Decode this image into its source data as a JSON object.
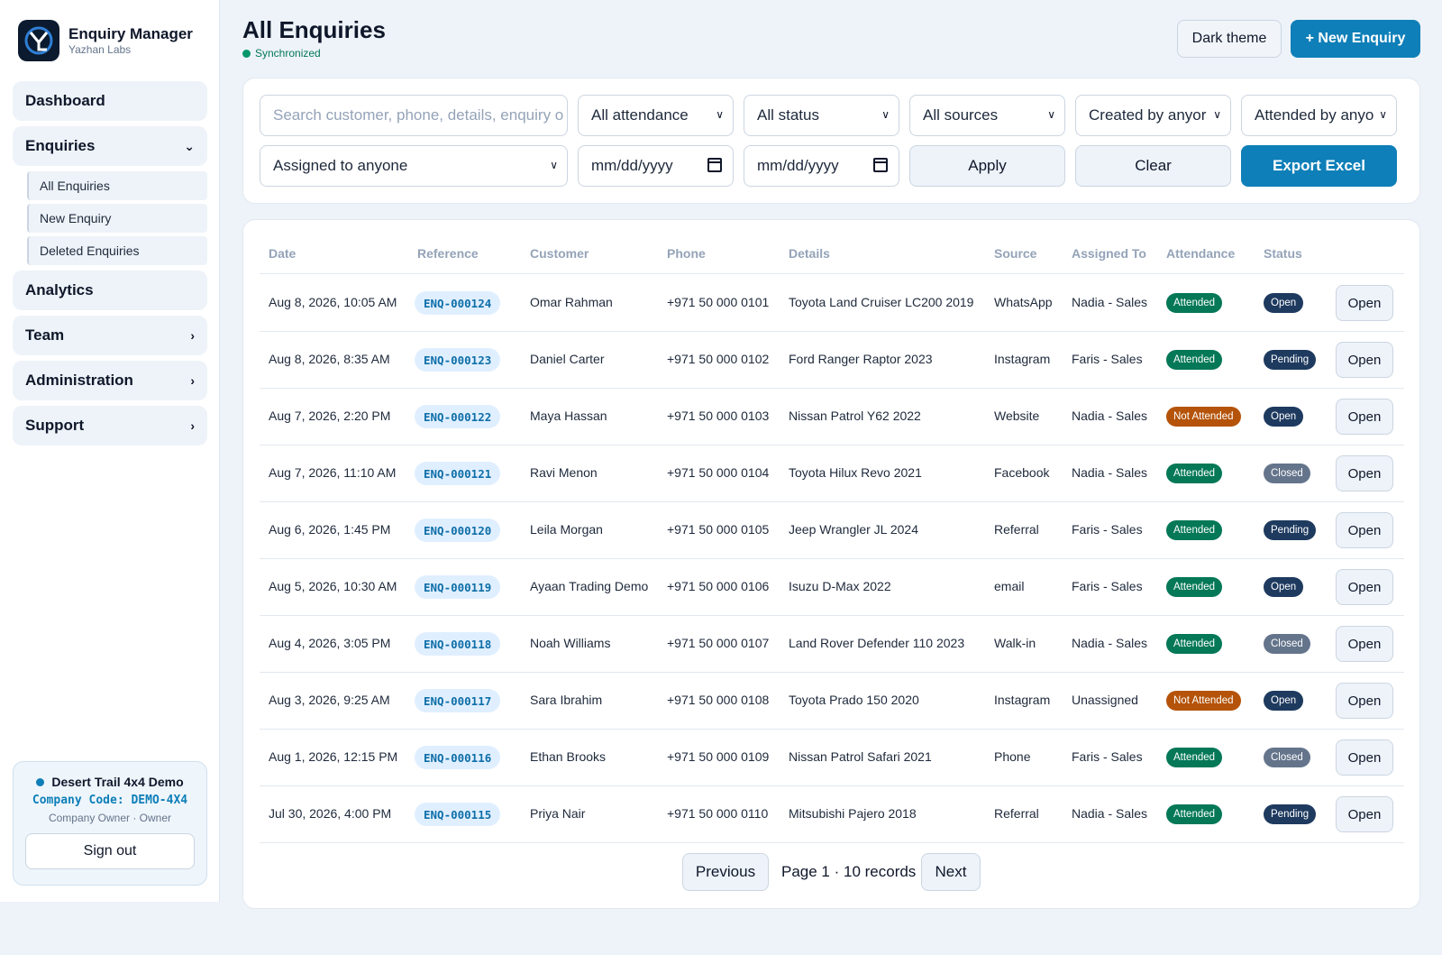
{
  "brand": {
    "title": "Enquiry Manager",
    "subtitle": "Yazhan Labs"
  },
  "sidebar": {
    "items": [
      {
        "label": "Dashboard"
      },
      {
        "label": "Enquiries"
      },
      {
        "label": "Analytics"
      },
      {
        "label": "Team"
      },
      {
        "label": "Administration"
      },
      {
        "label": "Support"
      }
    ],
    "enquiries_sub": [
      "All Enquiries",
      "New Enquiry",
      "Deleted Enquiries"
    ]
  },
  "company": {
    "name": "Desert Trail 4x4 Demo",
    "code": "Company Code: DEMO-4X4",
    "role": "Company Owner · Owner",
    "signout": "Sign out"
  },
  "header": {
    "title": "All Enquiries",
    "sync_status": "Synchronized",
    "theme_button": "Dark theme",
    "new_button": "+ New Enquiry"
  },
  "filters": {
    "search_placeholder": "Search customer, phone, details, enquiry o",
    "attendance": "All attendance",
    "status": "All status",
    "sources": "All sources",
    "created_by": "Created by anyor",
    "attended_by": "Attended by anyo",
    "assigned": "Assigned to anyone",
    "date_from": "mm/dd/yyyy",
    "date_to": "mm/dd/yyyy",
    "apply": "Apply",
    "clear": "Clear",
    "export": "Export Excel"
  },
  "table": {
    "headers": [
      "Date",
      "Reference",
      "Customer",
      "Phone",
      "Details",
      "Source",
      "Assigned To",
      "Attendance",
      "Status"
    ],
    "action_label": "Open",
    "rows": [
      {
        "date": "Aug 8, 2026, 10:05 AM",
        "ref": "ENQ-000124",
        "customer": "Omar Rahman",
        "phone": "+971 50 000 0101",
        "details": "Toyota Land Cruiser LC200 2019",
        "source": "WhatsApp",
        "assigned": "Nadia - Sales",
        "attendance": "Attended",
        "status": "Open"
      },
      {
        "date": "Aug 8, 2026, 8:35 AM",
        "ref": "ENQ-000123",
        "customer": "Daniel Carter",
        "phone": "+971 50 000 0102",
        "details": "Ford Ranger Raptor 2023",
        "source": "Instagram",
        "assigned": "Faris - Sales",
        "attendance": "Attended",
        "status": "Pending"
      },
      {
        "date": "Aug 7, 2026, 2:20 PM",
        "ref": "ENQ-000122",
        "customer": "Maya Hassan",
        "phone": "+971 50 000 0103",
        "details": "Nissan Patrol Y62 2022",
        "source": "Website",
        "assigned": "Nadia - Sales",
        "attendance": "Not Attended",
        "status": "Open"
      },
      {
        "date": "Aug 7, 2026, 11:10 AM",
        "ref": "ENQ-000121",
        "customer": "Ravi Menon",
        "phone": "+971 50 000 0104",
        "details": "Toyota Hilux Revo 2021",
        "source": "Facebook",
        "assigned": "Nadia - Sales",
        "attendance": "Attended",
        "status": "Closed"
      },
      {
        "date": "Aug 6, 2026, 1:45 PM",
        "ref": "ENQ-000120",
        "customer": "Leila Morgan",
        "phone": "+971 50 000 0105",
        "details": "Jeep Wrangler JL 2024",
        "source": "Referral",
        "assigned": "Faris - Sales",
        "attendance": "Attended",
        "status": "Pending"
      },
      {
        "date": "Aug 5, 2026, 10:30 AM",
        "ref": "ENQ-000119",
        "customer": "Ayaan Trading Demo",
        "phone": "+971 50 000 0106",
        "details": "Isuzu D-Max 2022",
        "source": "email",
        "assigned": "Faris - Sales",
        "attendance": "Attended",
        "status": "Open"
      },
      {
        "date": "Aug 4, 2026, 3:05 PM",
        "ref": "ENQ-000118",
        "customer": "Noah Williams",
        "phone": "+971 50 000 0107",
        "details": "Land Rover Defender 110 2023",
        "source": "Walk-in",
        "assigned": "Nadia - Sales",
        "attendance": "Attended",
        "status": "Closed"
      },
      {
        "date": "Aug 3, 2026, 9:25 AM",
        "ref": "ENQ-000117",
        "customer": "Sara Ibrahim",
        "phone": "+971 50 000 0108",
        "details": "Toyota Prado 150 2020",
        "source": "Instagram",
        "assigned": "Unassigned",
        "attendance": "Not Attended",
        "status": "Open"
      },
      {
        "date": "Aug 1, 2026, 12:15 PM",
        "ref": "ENQ-000116",
        "customer": "Ethan Brooks",
        "phone": "+971 50 000 0109",
        "details": "Nissan Patrol Safari 2021",
        "source": "Phone",
        "assigned": "Faris - Sales",
        "attendance": "Attended",
        "status": "Closed"
      },
      {
        "date": "Jul 30, 2026, 4:00 PM",
        "ref": "ENQ-000115",
        "customer": "Priya Nair",
        "phone": "+971 50 000 0110",
        "details": "Mitsubishi Pajero 2018",
        "source": "Referral",
        "assigned": "Nadia - Sales",
        "attendance": "Attended",
        "status": "Pending"
      }
    ]
  },
  "pagination": {
    "previous": "Previous",
    "info": "Page 1 · 10 records",
    "next": "Next"
  },
  "colors": {
    "accent": "#0e7fb8",
    "attended": "#047857",
    "not_attended": "#b45309",
    "status_dark": "#1e3a5f",
    "closed": "#64748b"
  }
}
